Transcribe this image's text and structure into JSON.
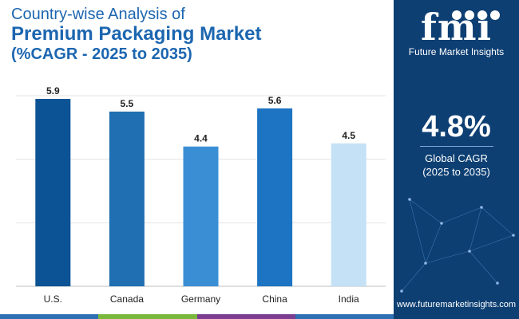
{
  "title": {
    "line1": "Country-wise Analysis of",
    "line2": "Premium Packaging Market",
    "line3": "(%CAGR - 2025 to 2035)"
  },
  "chart_data": {
    "type": "bar",
    "categories": [
      "U.S.",
      "Canada",
      "Germany",
      "China",
      "India"
    ],
    "values": [
      5.9,
      5.5,
      4.4,
      5.6,
      4.5
    ],
    "colors": [
      "#0b5394",
      "#1f6fb2",
      "#3a8fd4",
      "#1c74c2",
      "#c5e1f5"
    ],
    "ylim": [
      0,
      6
    ],
    "grid": true,
    "data_labels": true
  },
  "side_panel": {
    "logo_mark": "fmi",
    "logo_text": "Future Market Insights",
    "cagr_value": "4.8%",
    "cagr_label_line1": "Global CAGR",
    "cagr_label_line2": "(2025 to 2035)",
    "website": "www.futuremarketinsights.com"
  },
  "colors": {
    "panel_bg": "#0d3f73",
    "title": "#1c66b0",
    "bottom_bar": [
      "#2e6fb3",
      "#79b83a",
      "#7a3d8f",
      "#2e6fb3"
    ]
  }
}
